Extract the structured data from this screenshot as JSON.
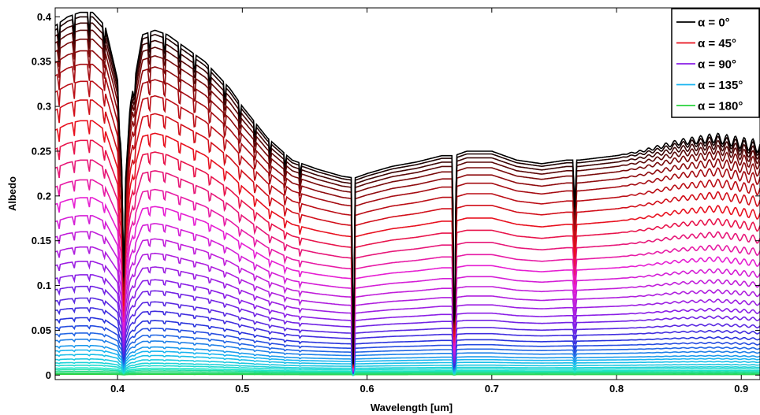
{
  "chart_data": {
    "type": "line",
    "title": "",
    "xlabel": "Wavelength [um]",
    "ylabel": "Albedo",
    "xlim": [
      0.35,
      0.915
    ],
    "ylim": [
      -0.005,
      0.41
    ],
    "grid": false,
    "legend_position": "top-right",
    "x_ticks": [
      0.4,
      0.5,
      0.6,
      0.7,
      0.8,
      0.9
    ],
    "x_tick_labels": [
      "0.4",
      "0.5",
      "0.6",
      "0.7",
      "0.8",
      "0.9"
    ],
    "y_ticks": [
      0,
      0.05,
      0.1,
      0.15,
      0.2,
      0.25,
      0.3,
      0.35,
      0.4
    ],
    "y_tick_labels": [
      "0",
      "0.05",
      "0.1",
      "0.15",
      "0.2",
      "0.25",
      "0.3",
      "0.35",
      "0.4"
    ],
    "legend": [
      {
        "label": "α = 0°",
        "color": "#000000"
      },
      {
        "label": "α = 45°",
        "color": "#e8101e"
      },
      {
        "label": "α = 90°",
        "color": "#8a1ee6"
      },
      {
        "label": "α = 135°",
        "color": "#19b4f0"
      },
      {
        "label": "α = 180°",
        "color": "#28d23c"
      }
    ],
    "phase_angles_deg": [
      0,
      5,
      10,
      15,
      20,
      25,
      30,
      35,
      40,
      45,
      50,
      55,
      60,
      65,
      70,
      75,
      80,
      85,
      90,
      95,
      100,
      105,
      110,
      115,
      120,
      125,
      130,
      135,
      140,
      145,
      150,
      155,
      160,
      165,
      170,
      175,
      180
    ],
    "base_spectrum": {
      "x": [
        0.35,
        0.36,
        0.37,
        0.38,
        0.39,
        0.4,
        0.405,
        0.41,
        0.42,
        0.43,
        0.44,
        0.45,
        0.47,
        0.49,
        0.5,
        0.52,
        0.54,
        0.56,
        0.58,
        0.59,
        0.6,
        0.62,
        0.64,
        0.66,
        0.67,
        0.68,
        0.7,
        0.72,
        0.74,
        0.76,
        0.77,
        0.8,
        0.82,
        0.85,
        0.88,
        0.915
      ],
      "y": [
        0.39,
        0.4,
        0.405,
        0.405,
        0.39,
        0.33,
        0.185,
        0.3,
        0.38,
        0.385,
        0.38,
        0.37,
        0.35,
        0.32,
        0.3,
        0.265,
        0.24,
        0.23,
        0.222,
        0.22,
        0.225,
        0.233,
        0.238,
        0.245,
        0.245,
        0.25,
        0.25,
        0.24,
        0.236,
        0.24,
        0.24,
        0.245,
        0.25,
        0.26,
        0.265,
        0.255
      ]
    },
    "absorption_lines": [
      {
        "x": 0.405,
        "depth": 0.45
      },
      {
        "x": 0.589,
        "depth": 1.0
      },
      {
        "x": 0.67,
        "depth": 1.0
      },
      {
        "x": 0.7665,
        "depth": 0.22
      }
    ],
    "curve_peak_values": [
      0.405,
      0.4,
      0.393,
      0.385,
      0.375,
      0.362,
      0.347,
      0.328,
      0.307,
      0.284,
      0.262,
      0.24,
      0.218,
      0.198,
      0.178,
      0.16,
      0.143,
      0.127,
      0.112,
      0.099,
      0.086,
      0.075,
      0.064,
      0.055,
      0.047,
      0.04,
      0.033,
      0.028,
      0.023,
      0.018,
      0.014,
      0.011,
      0.008,
      0.006,
      0.004,
      0.002,
      0.001
    ]
  }
}
